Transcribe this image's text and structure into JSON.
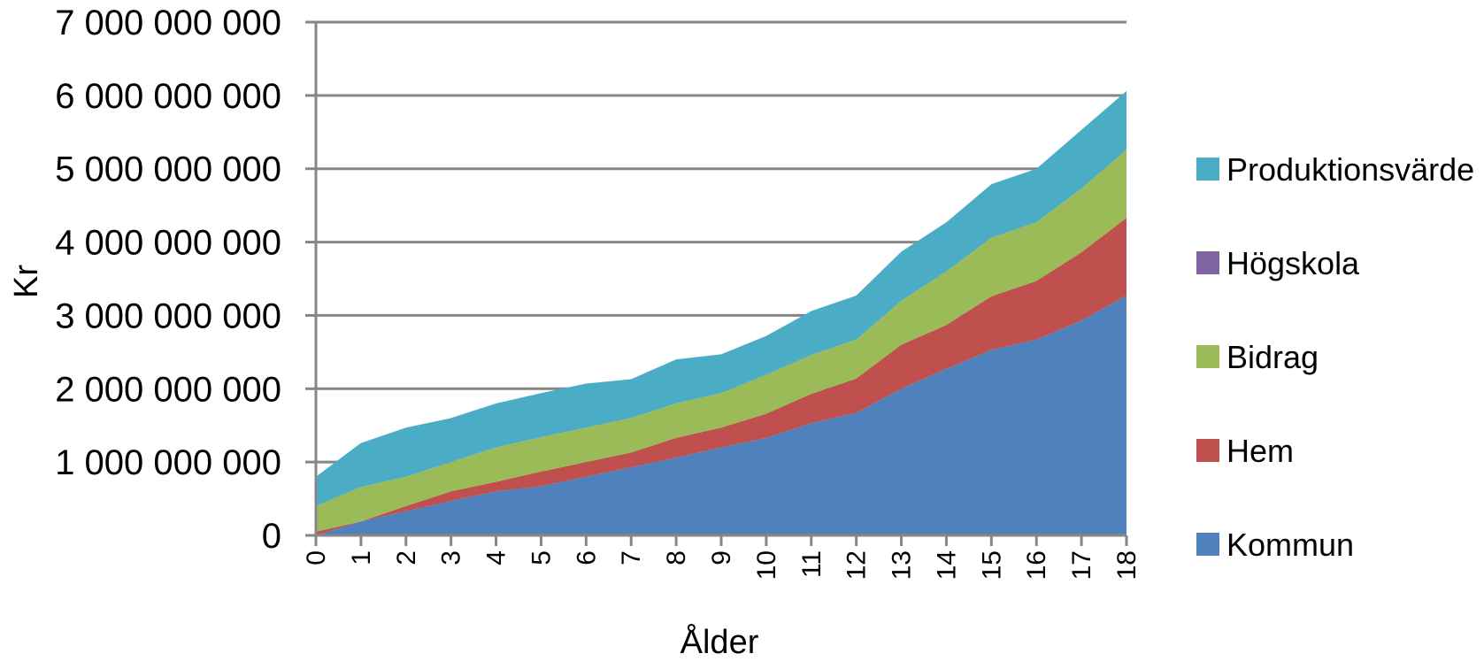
{
  "chart_data": {
    "type": "area",
    "stacked": true,
    "title": "",
    "xlabel": "Ålder",
    "ylabel": "Kr",
    "categories": [
      "0",
      "1",
      "2",
      "3",
      "4",
      "5",
      "6",
      "7",
      "8",
      "9",
      "10",
      "11",
      "12",
      "13",
      "14",
      "15",
      "16",
      "17",
      "18"
    ],
    "ylim": [
      0,
      7000000000
    ],
    "yticks": [
      0,
      1000000000,
      2000000000,
      3000000000,
      4000000000,
      5000000000,
      6000000000,
      7000000000
    ],
    "ytick_labels": [
      "0",
      "1 000 000 000",
      "2 000 000 000",
      "3 000 000 000",
      "4 000 000 000",
      "5 000 000 000",
      "6 000 000 000",
      "7 000 000 000"
    ],
    "grid": true,
    "legend_position": "right",
    "series": [
      {
        "name": "Kommun",
        "color": "#4F81BD",
        "values": [
          0,
          190000000,
          330000000,
          470000000,
          600000000,
          670000000,
          800000000,
          930000000,
          1060000000,
          1200000000,
          1330000000,
          1530000000,
          1670000000,
          2000000000,
          2270000000,
          2530000000,
          2670000000,
          2930000000,
          3270000000
        ]
      },
      {
        "name": "Hem",
        "color": "#C0504D",
        "values": [
          50000000,
          0,
          70000000,
          130000000,
          130000000,
          200000000,
          200000000,
          200000000,
          270000000,
          270000000,
          330000000,
          400000000,
          470000000,
          600000000,
          600000000,
          730000000,
          800000000,
          930000000,
          1060000000
        ]
      },
      {
        "name": "Bidrag",
        "color": "#9BBB59",
        "values": [
          350000000,
          470000000,
          400000000,
          400000000,
          470000000,
          470000000,
          470000000,
          470000000,
          470000000,
          470000000,
          530000000,
          530000000,
          530000000,
          600000000,
          730000000,
          800000000,
          800000000,
          870000000,
          930000000
        ]
      },
      {
        "name": "Högskola",
        "color": "#8064A2",
        "values": [
          0,
          0,
          0,
          0,
          0,
          0,
          0,
          0,
          0,
          0,
          0,
          0,
          0,
          0,
          0,
          0,
          0,
          0,
          0
        ]
      },
      {
        "name": "Produktionsvärde",
        "color": "#4BACC6",
        "values": [
          400000000,
          600000000,
          670000000,
          600000000,
          600000000,
          600000000,
          600000000,
          530000000,
          600000000,
          530000000,
          530000000,
          600000000,
          600000000,
          670000000,
          670000000,
          730000000,
          730000000,
          800000000,
          800000000
        ]
      }
    ],
    "legend_order": [
      "Produktionsvärde",
      "Högskola",
      "Bidrag",
      "Hem",
      "Kommun"
    ]
  }
}
